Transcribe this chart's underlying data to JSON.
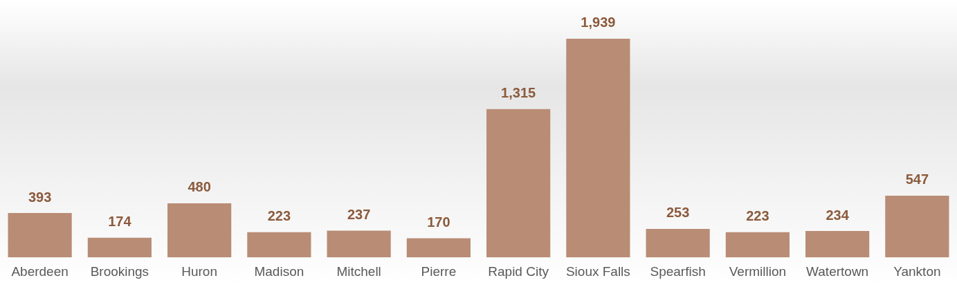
{
  "chart_data": {
    "type": "bar",
    "categories": [
      "Aberdeen",
      "Brookings",
      "Huron",
      "Madison",
      "Mitchell",
      "Pierre",
      "Rapid City",
      "Sioux Falls",
      "Spearfish",
      "Vermillion",
      "Watertown",
      "Yankton"
    ],
    "values": [
      393,
      174,
      480,
      223,
      237,
      170,
      1315,
      1939,
      253,
      223,
      234,
      547
    ],
    "value_labels": [
      "393",
      "174",
      "480",
      "223",
      "237",
      "170",
      "1,315",
      "1,939",
      "253",
      "223",
      "234",
      "547"
    ],
    "color": "#b98c75",
    "grid": false,
    "legend": false,
    "tick_labels": "x"
  }
}
